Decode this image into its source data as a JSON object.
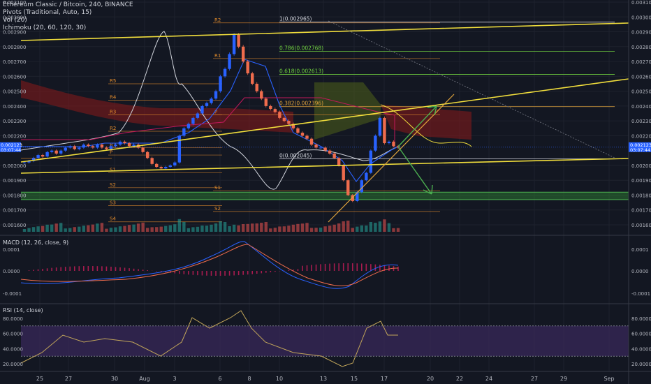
{
  "main_title": "Ethereum Classic / Bitcoin, 240, BINANCE",
  "indicators": [
    "Pivots (Traditional, Auto, 15)",
    "Vol (20)",
    "Ichimoku (20, 60, 120, 30)"
  ],
  "macd_label": "MACD (12, 26, close, 9)",
  "rsi_label": "RSI (14, close)",
  "price_ticks": [
    "0.003100",
    "0.003000",
    "0.002900",
    "0.002800",
    "0.002700",
    "0.002600",
    "0.002500",
    "0.002400",
    "0.002300",
    "0.002200",
    "0.002000",
    "0.001900",
    "0.001800",
    "0.001700",
    "0.001600"
  ],
  "current_price": "0.002123",
  "countdown": "03:07:44",
  "macd_ticks": [
    "0.0001",
    "0.0000",
    "-0.0001"
  ],
  "rsi_ticks": [
    "80.0000",
    "60.0000",
    "40.0000",
    "20.0000"
  ],
  "x_ticks": [
    "25",
    "27",
    "30",
    "Aug",
    "3",
    "6",
    "8",
    "10",
    "13",
    "15",
    "17",
    "20",
    "22",
    "24",
    "27",
    "29",
    "Sep"
  ],
  "colors": {
    "bg": "#131722",
    "up": "#2962ff",
    "down": "#ef6c4d",
    "trend": "#f0dd3c",
    "fib": "#6fcf3f",
    "pivot": "#e08a2b",
    "kumo": "#8b1a1a",
    "zone": "#2e7d32"
  },
  "chart_data": {
    "type": "line",
    "title": "Ethereum Classic / Bitcoin, 240, BINANCE",
    "ylim": [
      0.00155,
      0.0031
    ],
    "pivots": {
      "left": {
        "R5": 0.00255,
        "R4": 0.00244,
        "R3": 0.00234,
        "R2": 0.00223,
        "R1": 0.00212,
        "P": 0.00207,
        "S1": 0.00195,
        "S2": 0.00185,
        "S3": 0.00173,
        "S4": 0.00162
      },
      "right": {
        "R2": 0.00296,
        "R1": 0.00272,
        "P": 0.00234,
        "S1": 0.00183,
        "S2": 0.00169
      }
    },
    "pivot_labels": [
      "R5",
      "R4",
      "R3",
      "R2",
      "R1",
      "P",
      "S1",
      "S2",
      "S3",
      "S4"
    ],
    "fib_levels": [
      {
        "label": "1(0.002965)",
        "value": 0.002965
      },
      {
        "label": "0.786(0.002768)",
        "value": 0.002768
      },
      {
        "label": "0.618(0.002613)",
        "value": 0.002613
      },
      {
        "label": "0.382(0.002396)",
        "value": 0.002396
      },
      {
        "label": "0(0.002045)",
        "value": 0.002045
      }
    ],
    "close": [
      0.00202,
      0.00203,
      0.00205,
      0.00207,
      0.00206,
      0.00209,
      0.0021,
      0.00208,
      0.0021,
      0.00212,
      0.00213,
      0.00211,
      0.00212,
      0.00214,
      0.00213,
      0.00212,
      0.00214,
      0.00212,
      0.00211,
      0.00213,
      0.00214,
      0.00216,
      0.00215,
      0.00213,
      0.00214,
      0.00212,
      0.00209,
      0.00205,
      0.00201,
      0.00199,
      0.00198,
      0.00199,
      0.002,
      0.00202,
      0.0022,
      0.00225,
      0.00228,
      0.00232,
      0.00235,
      0.0024,
      0.00242,
      0.00245,
      0.0025,
      0.0026,
      0.00265,
      0.00275,
      0.00288,
      0.0028,
      0.0027,
      0.00262,
      0.00255,
      0.0025,
      0.00245,
      0.0024,
      0.00238,
      0.00236,
      0.00232,
      0.0023,
      0.00228,
      0.00225,
      0.00222,
      0.0022,
      0.00218,
      0.00214,
      0.00212,
      0.00212,
      0.0021,
      0.00208,
      0.00205,
      0.002,
      0.0019,
      0.0018,
      0.00176,
      0.00182,
      0.0019,
      0.00195,
      0.0021,
      0.0022,
      0.00232,
      0.00215,
      0.00216,
      0.00213,
      0.00212
    ],
    "annotations": [
      "R2",
      "R1",
      "R5",
      "R4",
      "R3",
      "R2",
      "R1",
      "P",
      "S1",
      "S1",
      "S2",
      "S3",
      "S4",
      "S2",
      "S1",
      "P"
    ]
  }
}
